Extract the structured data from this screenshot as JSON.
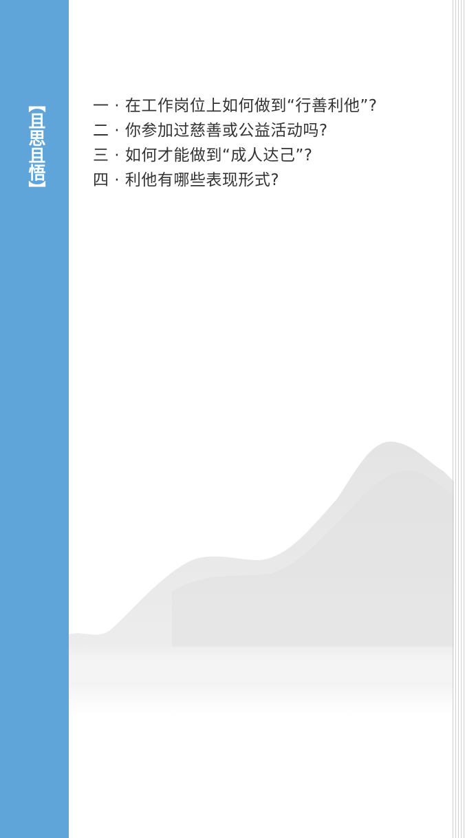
{
  "sidebar": {
    "title": "【且思且悟】",
    "accent_color": "#5fa5da"
  },
  "content": {
    "questions": [
      {
        "text": "一 · 在工作岗位上如何做到“行善利他”?"
      },
      {
        "text": "二 · 你参加过慈善或公益活动吗?"
      },
      {
        "text": "三 · 如何才能做到“成人达己”?"
      },
      {
        "text": "四 · 利他有哪些表现形式?"
      }
    ]
  },
  "decoration": {
    "illustration": "ink-wash-mountain",
    "mountain_color": "#e4e4e4"
  }
}
